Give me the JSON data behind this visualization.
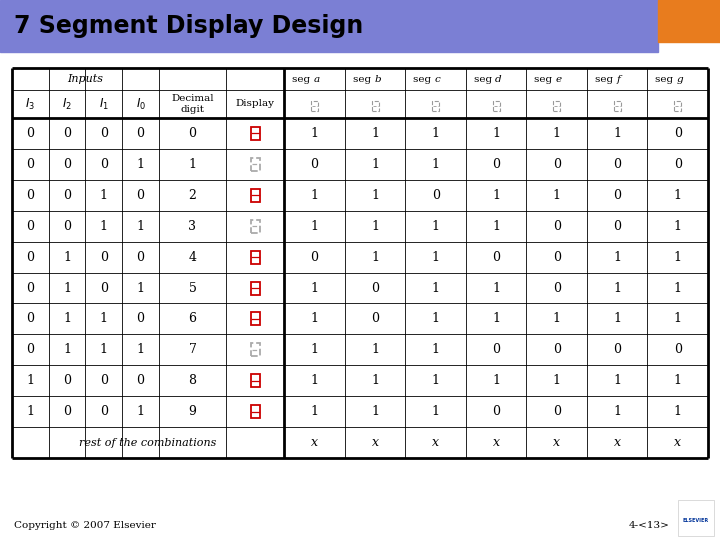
{
  "title": "7 Segment Display Design",
  "title_bg": "#7B7FD4",
  "title_color": "#000000",
  "orange_rect": "#E87C1E",
  "slide_bg": "#FFFFFF",
  "copyright": "Copyright © 2007 Elsevier",
  "page": "4-<13>",
  "table_data": [
    [
      0,
      0,
      0,
      0,
      0,
      "red",
      1,
      1,
      1,
      1,
      1,
      1,
      0
    ],
    [
      0,
      0,
      0,
      1,
      1,
      "gray",
      0,
      1,
      1,
      0,
      0,
      0,
      0
    ],
    [
      0,
      0,
      1,
      0,
      2,
      "red",
      1,
      1,
      0,
      1,
      1,
      0,
      1
    ],
    [
      0,
      0,
      1,
      1,
      3,
      "gray",
      1,
      1,
      1,
      1,
      0,
      0,
      1
    ],
    [
      0,
      1,
      0,
      0,
      4,
      "red",
      0,
      1,
      1,
      0,
      0,
      1,
      1
    ],
    [
      0,
      1,
      0,
      1,
      5,
      "red",
      1,
      0,
      1,
      1,
      0,
      1,
      1
    ],
    [
      0,
      1,
      1,
      0,
      6,
      "red",
      1,
      0,
      1,
      1,
      1,
      1,
      1
    ],
    [
      0,
      1,
      1,
      1,
      7,
      "gray",
      1,
      1,
      1,
      0,
      0,
      0,
      0
    ],
    [
      1,
      0,
      0,
      0,
      8,
      "red",
      1,
      1,
      1,
      1,
      1,
      1,
      1
    ],
    [
      1,
      0,
      0,
      1,
      9,
      "red",
      1,
      1,
      1,
      0,
      0,
      1,
      1
    ]
  ]
}
